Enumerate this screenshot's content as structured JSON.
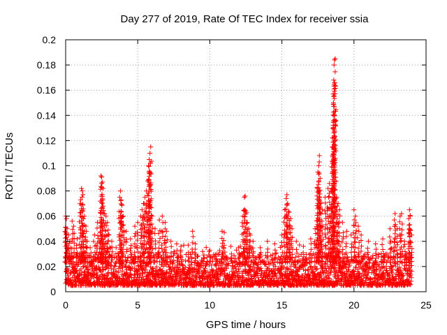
{
  "chart_data": {
    "type": "scatter",
    "title": "Day 277 of 2019, Rate Of TEC Index for receiver ssia",
    "xlabel": "GPS time / hours",
    "ylabel": "ROTI / TECUs",
    "xlim": [
      0,
      25
    ],
    "ylim": [
      0,
      0.2
    ],
    "x_ticks": [
      0,
      5,
      10,
      15,
      20,
      25
    ],
    "x_tick_labels": [
      "0",
      "5",
      "10",
      "15",
      "20",
      "25"
    ],
    "y_ticks": [
      0,
      0.02,
      0.04,
      0.06,
      0.08,
      0.1,
      0.12,
      0.14,
      0.16,
      0.18,
      0.2
    ],
    "y_tick_labels": [
      "0",
      "0.02",
      "0.04",
      "0.06",
      "0.08",
      "0.1",
      "0.12",
      "0.14",
      "0.16",
      "0.18",
      "0.2"
    ],
    "grid": true,
    "marker": "+",
    "color": "#ff0000",
    "series": [
      {
        "name": "ROTI",
        "data_window": [
          0,
          24
        ],
        "baseline_range": [
          0.005,
          0.03
        ],
        "points": [
          [
            0.0,
            0.06
          ],
          [
            0.05,
            0.058
          ],
          [
            0.1,
            0.05
          ],
          [
            0.2,
            0.045
          ],
          [
            0.3,
            0.04
          ],
          [
            0.45,
            0.056
          ],
          [
            0.55,
            0.052
          ],
          [
            0.8,
            0.042
          ],
          [
            1.0,
            0.07
          ],
          [
            1.1,
            0.082
          ],
          [
            1.15,
            0.08
          ],
          [
            1.2,
            0.077
          ],
          [
            1.3,
            0.06
          ],
          [
            1.4,
            0.052
          ],
          [
            1.5,
            0.04
          ],
          [
            1.7,
            0.035
          ],
          [
            2.0,
            0.045
          ],
          [
            2.2,
            0.055
          ],
          [
            2.4,
            0.063
          ],
          [
            2.45,
            0.092
          ],
          [
            2.5,
            0.091
          ],
          [
            2.55,
            0.087
          ],
          [
            2.6,
            0.082
          ],
          [
            2.7,
            0.062
          ],
          [
            2.8,
            0.06
          ],
          [
            2.9,
            0.055
          ],
          [
            3.0,
            0.045
          ],
          [
            3.2,
            0.04
          ],
          [
            3.5,
            0.035
          ],
          [
            3.75,
            0.075
          ],
          [
            3.8,
            0.08
          ],
          [
            3.85,
            0.073
          ],
          [
            3.9,
            0.069
          ],
          [
            4.0,
            0.06
          ],
          [
            4.2,
            0.048
          ],
          [
            4.5,
            0.042
          ],
          [
            4.8,
            0.052
          ],
          [
            5.0,
            0.055
          ],
          [
            5.2,
            0.06
          ],
          [
            5.3,
            0.065
          ],
          [
            5.4,
            0.07
          ],
          [
            5.5,
            0.075
          ],
          [
            5.6,
            0.08
          ],
          [
            5.7,
            0.088
          ],
          [
            5.75,
            0.1
          ],
          [
            5.8,
            0.105
          ],
          [
            5.85,
            0.11
          ],
          [
            5.9,
            0.115
          ],
          [
            6.0,
            0.06
          ],
          [
            6.2,
            0.05
          ],
          [
            6.5,
            0.057
          ],
          [
            6.7,
            0.06
          ],
          [
            6.9,
            0.055
          ],
          [
            7.0,
            0.048
          ],
          [
            7.3,
            0.04
          ],
          [
            7.7,
            0.038
          ],
          [
            8.0,
            0.036
          ],
          [
            8.5,
            0.037
          ],
          [
            8.8,
            0.048
          ],
          [
            9.0,
            0.038
          ],
          [
            9.5,
            0.032
          ],
          [
            10.0,
            0.033
          ],
          [
            10.5,
            0.03
          ],
          [
            10.85,
            0.048
          ],
          [
            11.0,
            0.047
          ],
          [
            11.5,
            0.03
          ],
          [
            12.0,
            0.035
          ],
          [
            12.3,
            0.06
          ],
          [
            12.4,
            0.075
          ],
          [
            12.45,
            0.076
          ],
          [
            12.55,
            0.063
          ],
          [
            12.6,
            0.055
          ],
          [
            12.7,
            0.05
          ],
          [
            12.8,
            0.045
          ],
          [
            13.0,
            0.04
          ],
          [
            13.5,
            0.035
          ],
          [
            14.0,
            0.04
          ],
          [
            14.5,
            0.038
          ],
          [
            15.0,
            0.045
          ],
          [
            15.2,
            0.065
          ],
          [
            15.3,
            0.074
          ],
          [
            15.35,
            0.077
          ],
          [
            15.4,
            0.07
          ],
          [
            15.5,
            0.063
          ],
          [
            15.6,
            0.058
          ],
          [
            15.7,
            0.05
          ],
          [
            16.0,
            0.04
          ],
          [
            16.5,
            0.036
          ],
          [
            17.0,
            0.042
          ],
          [
            17.3,
            0.05
          ],
          [
            17.45,
            0.082
          ],
          [
            17.5,
            0.095
          ],
          [
            17.55,
            0.1
          ],
          [
            17.6,
            0.108
          ],
          [
            17.65,
            0.09
          ],
          [
            17.7,
            0.07
          ],
          [
            17.8,
            0.065
          ],
          [
            18.0,
            0.075
          ],
          [
            18.2,
            0.082
          ],
          [
            18.3,
            0.086
          ],
          [
            18.4,
            0.08
          ],
          [
            18.5,
            0.115
          ],
          [
            18.55,
            0.13
          ],
          [
            18.58,
            0.15
          ],
          [
            18.6,
            0.168
          ],
          [
            18.62,
            0.18
          ],
          [
            18.65,
            0.184
          ],
          [
            18.7,
            0.185
          ],
          [
            18.8,
            0.075
          ],
          [
            18.9,
            0.07
          ],
          [
            19.0,
            0.065
          ],
          [
            19.2,
            0.055
          ],
          [
            19.5,
            0.048
          ],
          [
            19.8,
            0.045
          ],
          [
            20.0,
            0.065
          ],
          [
            20.1,
            0.06
          ],
          [
            20.3,
            0.052
          ],
          [
            20.5,
            0.045
          ],
          [
            21.0,
            0.04
          ],
          [
            21.5,
            0.038
          ],
          [
            22.0,
            0.042
          ],
          [
            22.5,
            0.05
          ],
          [
            22.8,
            0.057
          ],
          [
            22.85,
            0.062
          ],
          [
            23.0,
            0.05
          ],
          [
            23.2,
            0.06
          ],
          [
            23.3,
            0.062
          ],
          [
            23.5,
            0.04
          ],
          [
            23.8,
            0.058
          ],
          [
            23.85,
            0.065
          ],
          [
            23.9,
            0.06
          ],
          [
            24.0,
            0.045
          ]
        ]
      }
    ]
  }
}
